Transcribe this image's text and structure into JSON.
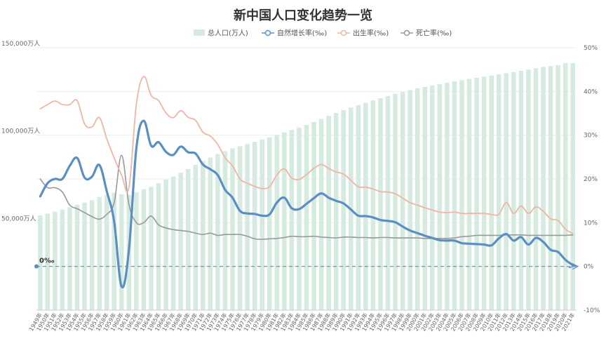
{
  "chart_data": {
    "type": "bar+line",
    "title": "新中国人口变化趋势一览",
    "x_start": 1949,
    "x_end": 2021,
    "x_tick_suffix": "年",
    "categories": [
      "1949年",
      "1950年",
      "1951年",
      "1952年",
      "1953年",
      "1954年",
      "1955年",
      "1956年",
      "1957年",
      "1958年",
      "1959年",
      "1960年",
      "1961年",
      "1962年",
      "1963年",
      "1964年",
      "1965年",
      "1966年",
      "1967年",
      "1968年",
      "1969年",
      "1970年",
      "1971年",
      "1972年",
      "1973年",
      "1974年",
      "1975年",
      "1976年",
      "1977年",
      "1978年",
      "1979年",
      "1980年",
      "1981年",
      "1982年",
      "1983年",
      "1984年",
      "1985年",
      "1986年",
      "1987年",
      "1988年",
      "1989年",
      "1990年",
      "1991年",
      "1992年",
      "1993年",
      "1994年",
      "1995年",
      "1996年",
      "1997年",
      "1998年",
      "1999年",
      "2000年",
      "2001年",
      "2002年",
      "2003年",
      "2004年",
      "2005年",
      "2006年",
      "2007年",
      "2008年",
      "2009年",
      "2010年",
      "2011年",
      "2012年",
      "2013年",
      "2014年",
      "2015年",
      "2016年",
      "2017年",
      "2018年",
      "2019年",
      "2020年",
      "2021年"
    ],
    "y_left": {
      "min": 0,
      "max": 150000,
      "ticks": [
        50000,
        100000,
        150000
      ],
      "tick_labels": [
        "50,000万人",
        "100,000万人",
        "150,000万人"
      ]
    },
    "y_right": {
      "min": -10,
      "max": 50,
      "ticks": [
        -10,
        0,
        10,
        20,
        30,
        40,
        50
      ],
      "tick_labels": [
        "-10%",
        "0%",
        "10%",
        "20%",
        "30%",
        "40%",
        "50%"
      ]
    },
    "zero_line_label": "0‰",
    "legend_position": "top-center",
    "series": [
      {
        "name": "总人口(万人)",
        "type": "bar",
        "axis": "left",
        "color": "#d6ebe0",
        "values": [
          54167,
          55196,
          56300,
          57482,
          58796,
          60266,
          61465,
          62828,
          64653,
          65994,
          67207,
          66207,
          65859,
          67295,
          69172,
          70499,
          72538,
          74542,
          76368,
          78534,
          80671,
          82992,
          85229,
          87177,
          89211,
          90859,
          92420,
          93717,
          94974,
          96259,
          97542,
          98705,
          100072,
          101654,
          103008,
          104357,
          105851,
          107507,
          109300,
          111026,
          112704,
          114333,
          115823,
          117171,
          118517,
          119850,
          121121,
          122389,
          123626,
          124761,
          125786,
          126743,
          127627,
          128453,
          129227,
          129988,
          130756,
          131448,
          132129,
          132802,
          133450,
          134091,
          134735,
          135404,
          136072,
          136782,
          137462,
          138271,
          139008,
          139538,
          140005,
          141212,
          141260
        ]
      },
      {
        "name": "自然增长率(‰)",
        "type": "line",
        "axis": "right",
        "color": "#5b8fc3",
        "values": [
          16.0,
          19.0,
          20.0,
          20.0,
          23.0,
          24.8,
          20.3,
          20.5,
          23.2,
          17.2,
          10.2,
          -4.6,
          3.8,
          27.0,
          33.3,
          27.6,
          28.4,
          26.2,
          25.5,
          27.4,
          26.1,
          25.8,
          23.3,
          22.2,
          20.9,
          17.5,
          15.7,
          12.7,
          12.1,
          12.0,
          11.6,
          11.9,
          14.6,
          15.7,
          13.3,
          13.1,
          14.3,
          15.6,
          16.7,
          15.7,
          15.0,
          14.4,
          13.0,
          11.6,
          11.5,
          11.2,
          10.6,
          10.4,
          10.1,
          9.1,
          8.2,
          7.6,
          7.0,
          6.5,
          6.0,
          5.9,
          5.9,
          5.3,
          5.2,
          5.1,
          5.0,
          4.8,
          6.4,
          7.4,
          5.9,
          6.7,
          5.0,
          6.5,
          5.6,
          3.8,
          3.3,
          1.5,
          0.3
        ]
      },
      {
        "name": "出生率(‰)",
        "type": "line",
        "axis": "right",
        "color": "#eeb6a4",
        "values": [
          36.0,
          37.0,
          37.8,
          37.0,
          37.0,
          37.9,
          32.6,
          31.9,
          34.0,
          29.2,
          24.8,
          20.9,
          18.0,
          37.0,
          43.4,
          39.1,
          37.9,
          35.1,
          34.0,
          35.6,
          34.1,
          33.4,
          30.7,
          29.8,
          27.9,
          24.8,
          23.0,
          20.0,
          19.0,
          18.3,
          17.8,
          18.2,
          20.9,
          22.3,
          20.2,
          19.9,
          21.0,
          22.4,
          23.3,
          22.4,
          21.6,
          21.1,
          19.7,
          18.2,
          18.1,
          17.7,
          17.1,
          17.0,
          16.6,
          15.6,
          14.6,
          14.0,
          13.4,
          12.9,
          12.4,
          12.3,
          12.4,
          12.1,
          12.1,
          12.1,
          12.1,
          11.9,
          11.9,
          14.6,
          12.1,
          13.8,
          12.1,
          13.6,
          12.6,
          10.9,
          10.5,
          8.5,
          7.5
        ]
      },
      {
        "name": "死亡率(‰)",
        "type": "line",
        "axis": "right",
        "color": "#999999",
        "values": [
          20.0,
          18.0,
          18.0,
          17.0,
          14.0,
          13.2,
          12.3,
          11.4,
          10.8,
          11.9,
          14.6,
          25.4,
          14.2,
          10.0,
          10.0,
          11.5,
          9.5,
          8.8,
          8.4,
          8.2,
          8.0,
          7.6,
          7.3,
          7.6,
          7.1,
          7.3,
          7.3,
          7.3,
          6.9,
          6.3,
          6.2,
          6.3,
          6.4,
          6.6,
          6.9,
          6.8,
          6.8,
          6.9,
          6.7,
          6.6,
          6.5,
          6.7,
          6.7,
          6.6,
          6.6,
          6.5,
          6.6,
          6.6,
          6.5,
          6.5,
          6.5,
          6.5,
          6.4,
          6.4,
          6.4,
          6.4,
          6.5,
          6.8,
          6.9,
          7.1,
          7.1,
          7.1,
          7.1,
          7.2,
          7.2,
          7.2,
          7.1,
          7.1,
          7.1,
          7.1,
          7.1,
          7.1,
          7.2
        ]
      }
    ]
  }
}
